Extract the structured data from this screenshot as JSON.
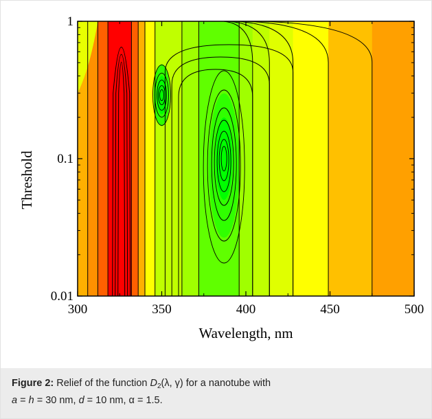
{
  "chart_data": {
    "type": "heatmap",
    "subtype": "contour",
    "xlabel": "Wavelength, nm",
    "ylabel": "Threshold",
    "xlim": [
      300,
      500
    ],
    "ylim": [
      0.01,
      1
    ],
    "yscale": "log",
    "xticks": [
      "300",
      "350",
      "400",
      "450",
      "500"
    ],
    "yticks": [
      "0.01",
      "0.1",
      "1"
    ],
    "grid": false,
    "colormap": [
      "#ff0000",
      "#ff6000",
      "#ffb000",
      "#ffff00",
      "#80ff00",
      "#00ff00"
    ],
    "contour_line_color": "#000000",
    "bands": [
      {
        "x": [
          300,
          306
        ],
        "color": "#ffb000"
      },
      {
        "x": [
          306,
          312
        ],
        "color": "#ff9000"
      },
      {
        "x": [
          312,
          318
        ],
        "color": "#ff6000"
      },
      {
        "x": [
          318,
          332
        ],
        "color": "#ff0000"
      },
      {
        "x": [
          332,
          336
        ],
        "color": "#ff6000"
      },
      {
        "x": [
          336,
          340
        ],
        "color": "#ffb000"
      },
      {
        "x": [
          340,
          346
        ],
        "color": "#ffff00"
      },
      {
        "x": [
          346,
          362
        ],
        "color": "#c0ff00"
      },
      {
        "x": [
          362,
          372
        ],
        "color": "#a0ff00"
      },
      {
        "x": [
          372,
          396
        ],
        "color": "#60ff00"
      },
      {
        "x": [
          396,
          404
        ],
        "color": "#a0ff00"
      },
      {
        "x": [
          404,
          414
        ],
        "color": "#c0ff00"
      },
      {
        "x": [
          414,
          428
        ],
        "color": "#e0ff00"
      },
      {
        "x": [
          428,
          449
        ],
        "color": "#ffff00"
      },
      {
        "x": [
          449,
          475
        ],
        "color": "#ffc000"
      },
      {
        "x": [
          475,
          500
        ],
        "color": "#ffa000"
      }
    ],
    "features": [
      {
        "type": "minimum",
        "x": 350,
        "y": 0.29,
        "color": "#00ff00"
      },
      {
        "type": "minimum",
        "x": 387,
        "y": 0.1,
        "color": "#00ff00"
      },
      {
        "type": "peak-ridge",
        "x": 326,
        "y": 0.8,
        "color": "#ff0000"
      }
    ]
  },
  "caption": {
    "label": "Figure 2:",
    "text_before_symbol": " Relief of the function ",
    "symbol": "D",
    "subscript": "2",
    "args": "(λ, γ) for a nanotube with",
    "a": "a",
    "eq1": " = ",
    "h": "h",
    "eq2": " = 30 nm, ",
    "d": "d",
    "eq3": " = 10 nm, α = 1.5."
  }
}
